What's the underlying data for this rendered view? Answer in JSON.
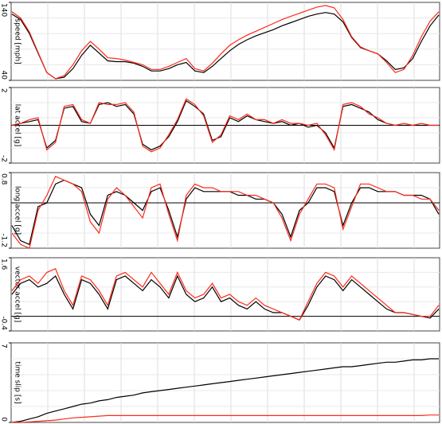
{
  "chart_data": [
    {
      "type": "line",
      "ylabel": "speed [mph]",
      "ylim": [
        40,
        140
      ],
      "yticks": [
        40,
        140
      ],
      "series": [
        {
          "color": "#000000",
          "values": [
            125,
            118,
            100,
            75,
            50,
            42,
            44,
            55,
            72,
            85,
            75,
            65,
            64,
            64,
            62,
            58,
            52,
            52,
            55,
            60,
            63,
            52,
            50,
            58,
            68,
            78,
            86,
            92,
            97,
            101,
            105,
            110,
            114,
            118,
            122,
            125,
            127,
            125,
            115,
            95,
            82,
            78,
            74,
            65,
            54,
            56,
            68,
            90,
            110,
            124
          ]
        },
        {
          "color": "#ff2a1a",
          "values": [
            128,
            120,
            102,
            76,
            50,
            42,
            46,
            60,
            78,
            90,
            80,
            69,
            68,
            66,
            63,
            60,
            54,
            54,
            58,
            63,
            68,
            55,
            52,
            62,
            74,
            85,
            92,
            98,
            103,
            108,
            113,
            118,
            122,
            126,
            130,
            134,
            136,
            133,
            118,
            96,
            83,
            78,
            74,
            63,
            50,
            54,
            72,
            96,
            116,
            128
          ]
        }
      ]
    },
    {
      "type": "line",
      "ylabel": "lat accel [g]",
      "ylim": [
        -2,
        2
      ],
      "yticks": [
        -2,
        2
      ],
      "series": [
        {
          "color": "#000000",
          "values": [
            0,
            0.1,
            0.2,
            0.3,
            -1.2,
            -0.8,
            0.9,
            1.0,
            0.2,
            0.1,
            1.1,
            1.2,
            1.0,
            1.1,
            0.6,
            -1.0,
            -1.3,
            -1.1,
            -0.6,
            0.2,
            1.3,
            1.0,
            0.6,
            -0.8,
            -0.6,
            0.4,
            0.2,
            0.5,
            0.3,
            0.2,
            0.1,
            0.2,
            0,
            0.1,
            -0.1,
            0,
            -0.4,
            -1.2,
            1.0,
            1.1,
            0.9,
            0.7,
            0.3,
            0.1,
            0,
            0,
            0,
            0,
            0,
            0
          ]
        },
        {
          "color": "#ff2a1a",
          "values": [
            0,
            0.1,
            0.3,
            0.4,
            -1.3,
            -0.9,
            1.0,
            1.1,
            0.3,
            0.1,
            1.2,
            1.1,
            1.1,
            1.2,
            0.7,
            -1.1,
            -1.4,
            -1.2,
            -0.5,
            0.3,
            1.4,
            1.1,
            0.5,
            -0.9,
            -0.5,
            0.5,
            0.3,
            0.6,
            0.3,
            0.3,
            0.1,
            0.3,
            0.1,
            0.1,
            0,
            0.1,
            -0.5,
            -1.3,
            1.1,
            1.2,
            1.0,
            0.6,
            0.4,
            0.1,
            0,
            0.1,
            0,
            0.1,
            0,
            0
          ]
        }
      ]
    },
    {
      "type": "line",
      "ylabel": "long accel [g]",
      "ylim": [
        -1.2,
        0.8
      ],
      "yticks": [
        -1.2,
        0.8
      ],
      "series": [
        {
          "color": "#000000",
          "values": [
            -0.6,
            -1.0,
            -1.1,
            -0.1,
            0,
            0.5,
            0.6,
            0.5,
            0.4,
            -0.3,
            -0.6,
            0.2,
            0.3,
            0.2,
            0,
            -0.2,
            0.3,
            0.4,
            -0.2,
            -0.9,
            0.1,
            0.4,
            0.3,
            0.3,
            0.3,
            0.3,
            0.2,
            0.2,
            0.1,
            0.1,
            0,
            -0.3,
            -0.9,
            -0.2,
            0,
            0.4,
            0.4,
            0.3,
            -0.6,
            0,
            0.4,
            0.4,
            0.3,
            0.3,
            0.3,
            0.2,
            0.2,
            0.2,
            0.1,
            -0.3
          ]
        },
        {
          "color": "#ff2a1a",
          "values": [
            -0.8,
            -1.1,
            -1.2,
            -0.2,
            0.2,
            0.7,
            0.6,
            0.5,
            0.3,
            -0.5,
            -0.8,
            0.1,
            0.4,
            0.2,
            -0.1,
            -0.4,
            0.4,
            0.5,
            -0.3,
            -1.0,
            0.2,
            0.5,
            0.4,
            0.4,
            0.3,
            0.3,
            0.3,
            0.2,
            0.2,
            0.1,
            0,
            -0.4,
            -1.0,
            -0.3,
            0.1,
            0.5,
            0.5,
            0.4,
            -0.7,
            -0.1,
            0.5,
            0.5,
            0.4,
            0.3,
            0.3,
            0.2,
            0.2,
            0.1,
            0.1,
            -0.2
          ]
        }
      ]
    },
    {
      "type": "line",
      "ylabel": "vector accel [g]",
      "ylim": [
        -0.4,
        1.6
      ],
      "yticks": [
        -0.4,
        1.6
      ],
      "series": [
        {
          "color": "#000000",
          "values": [
            0.6,
            0.9,
            1.0,
            0.8,
            0.9,
            1.1,
            0.6,
            0.2,
            1.0,
            0.9,
            0.6,
            0.2,
            1.0,
            1.1,
            0.9,
            0.7,
            1.0,
            0.8,
            0.5,
            1.1,
            0.6,
            0.4,
            0.5,
            0.8,
            0.4,
            0.5,
            0.3,
            0.2,
            0.4,
            0.2,
            0.1,
            0.1,
            0,
            -0.1,
            0.3,
            0.8,
            1.1,
            1.0,
            0.7,
            1.0,
            0.8,
            0.6,
            0.4,
            0.2,
            0.1,
            0.1,
            0.05,
            0,
            -0.05,
            0.2
          ]
        },
        {
          "color": "#ff2a1a",
          "values": [
            0.7,
            1.0,
            1.1,
            0.9,
            1.2,
            1.3,
            0.7,
            0.3,
            1.1,
            1.0,
            0.7,
            0.3,
            1.1,
            1.2,
            1.0,
            0.8,
            1.2,
            0.9,
            0.6,
            1.2,
            0.7,
            0.5,
            0.6,
            0.9,
            0.5,
            0.6,
            0.4,
            0.3,
            0.5,
            0.3,
            0.2,
            0.1,
            0,
            -0.1,
            0.4,
            0.9,
            1.2,
            1.1,
            0.8,
            1.1,
            0.9,
            0.7,
            0.5,
            0.3,
            0.1,
            0.1,
            0.05,
            0,
            0,
            0.3
          ]
        }
      ]
    },
    {
      "type": "line",
      "ylabel": "time slip [s]",
      "ylim": [
        0,
        7
      ],
      "yticks": [
        0,
        7
      ],
      "series": [
        {
          "color": "#000000",
          "values": [
            0,
            0.1,
            0.3,
            0.5,
            0.8,
            1.0,
            1.2,
            1.4,
            1.6,
            1.7,
            1.9,
            2.0,
            2.2,
            2.3,
            2.4,
            2.6,
            2.7,
            2.8,
            2.9,
            3.0,
            3.1,
            3.2,
            3.3,
            3.4,
            3.5,
            3.6,
            3.7,
            3.8,
            3.9,
            4.0,
            4.1,
            4.2,
            4.3,
            4.4,
            4.5,
            4.6,
            4.7,
            4.8,
            4.9,
            4.9,
            5.0,
            5.1,
            5.2,
            5.3,
            5.3,
            5.4,
            5.5,
            5.5,
            5.6,
            5.6
          ]
        },
        {
          "color": "#ff2a1a",
          "values": [
            0,
            0,
            0.05,
            0.1,
            0.15,
            0.2,
            0.3,
            0.4,
            0.45,
            0.5,
            0.55,
            0.6,
            0.6,
            0.6,
            0.6,
            0.6,
            0.6,
            0.6,
            0.6,
            0.6,
            0.6,
            0.6,
            0.6,
            0.6,
            0.6,
            0.6,
            0.6,
            0.6,
            0.6,
            0.6,
            0.6,
            0.6,
            0.6,
            0.6,
            0.6,
            0.6,
            0.6,
            0.6,
            0.6,
            0.6,
            0.6,
            0.6,
            0.6,
            0.6,
            0.6,
            0.6,
            0.6,
            0.6,
            0.65,
            0.65
          ]
        }
      ]
    }
  ]
}
